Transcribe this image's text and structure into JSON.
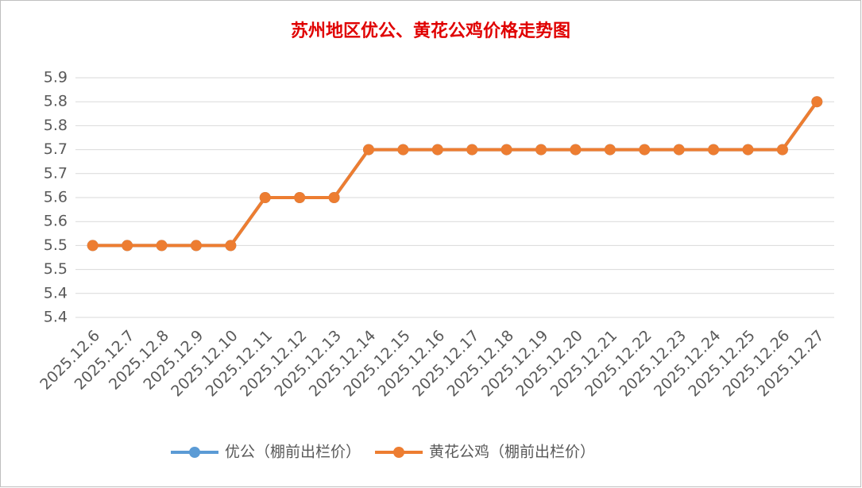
{
  "chart_data": {
    "type": "line",
    "title": "苏州地区优公、黄花公鸡价格走势图",
    "categories": [
      "2025.12.6",
      "2025.12.7",
      "2025.12.8",
      "2025.12.9",
      "2025.12.10",
      "2025.12.11",
      "2025.12.12",
      "2025.12.13",
      "2025.12.14",
      "2025.12.15",
      "2025.12.16",
      "2025.12.17",
      "2025.12.18",
      "2025.12.19",
      "2025.12.20",
      "2025.12.21",
      "2025.12.22",
      "2025.12.23",
      "2025.12.24",
      "2025.12.25",
      "2025.12.26",
      "2025.12.27"
    ],
    "series": [
      {
        "name": "优公（棚前出栏价）",
        "color": "#5b9bd5",
        "values": [
          5.5,
          5.5,
          5.5,
          5.5,
          5.5,
          5.6,
          5.6,
          5.6,
          5.7,
          5.7,
          5.7,
          5.7,
          5.7,
          5.7,
          5.7,
          5.7,
          5.7,
          5.7,
          5.7,
          5.7,
          5.7,
          5.8
        ]
      },
      {
        "name": "黄花公鸡（棚前出栏价）",
        "color": "#ed7d31",
        "values": [
          5.5,
          5.5,
          5.5,
          5.5,
          5.5,
          5.6,
          5.6,
          5.6,
          5.7,
          5.7,
          5.7,
          5.7,
          5.7,
          5.7,
          5.7,
          5.7,
          5.7,
          5.7,
          5.7,
          5.7,
          5.7,
          5.8
        ]
      }
    ],
    "ylim": [
      5.35,
      5.85
    ],
    "yticks": [
      {
        "value": 5.35,
        "label": "5.4"
      },
      {
        "value": 5.4,
        "label": "5.4"
      },
      {
        "value": 5.45,
        "label": "5.5"
      },
      {
        "value": 5.5,
        "label": "5.5"
      },
      {
        "value": 5.55,
        "label": "5.6"
      },
      {
        "value": 5.6,
        "label": "5.6"
      },
      {
        "value": 5.65,
        "label": "5.7"
      },
      {
        "value": 5.7,
        "label": "5.7"
      },
      {
        "value": 5.75,
        "label": "5.8"
      },
      {
        "value": 5.8,
        "label": "5.8"
      },
      {
        "value": 5.85,
        "label": "5.9"
      }
    ],
    "grid": true,
    "legend": "bottom"
  }
}
